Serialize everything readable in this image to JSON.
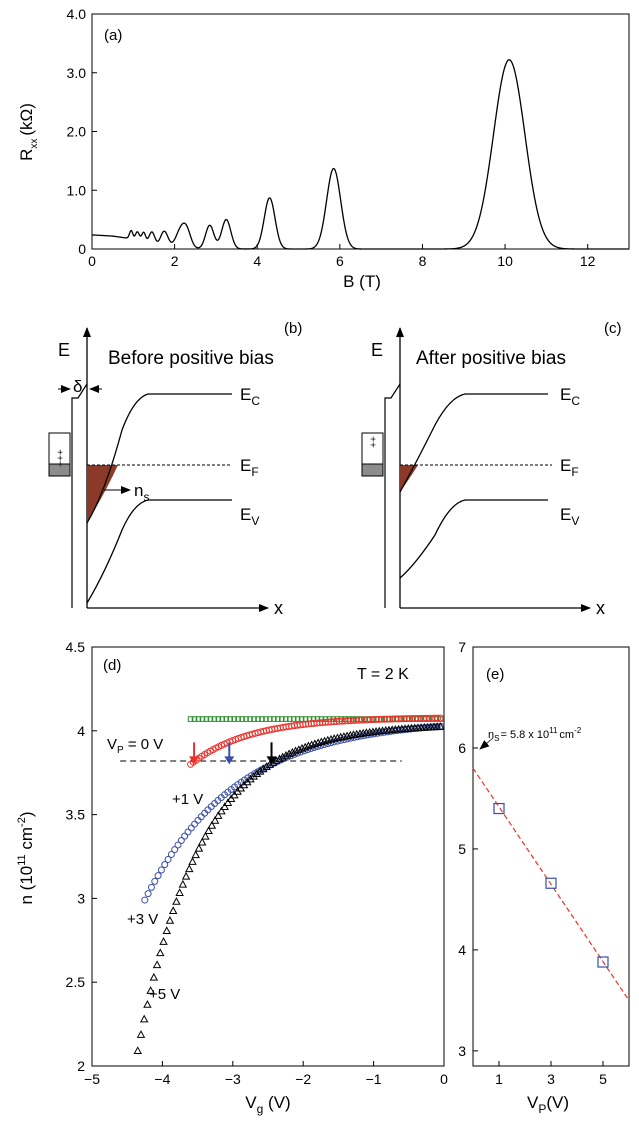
{
  "colors": {
    "black": "#000000",
    "red": "#e8332c",
    "blue": "#3b4fa8",
    "green": "#2f8f2f",
    "charge_fill": "#8b3a2a",
    "gate_gray": "#8c8c8c",
    "fit_line": "#e8332c"
  },
  "chart_data": [
    {
      "type": "line",
      "panel_label": "(a)",
      "xlabel": "B (T)",
      "ylabel_main": "R",
      "ylabel_sub": "xx",
      "ylabel_unit": "(kΩ)",
      "xlim": [
        0,
        13
      ],
      "ylim": [
        0,
        4
      ],
      "x_ticks": [
        "0",
        "2",
        "4",
        "6",
        "8",
        "10",
        "12"
      ],
      "y_ticks": [
        "0",
        "1.0",
        "2.0",
        "3.0",
        "4.0"
      ],
      "grid": false,
      "series": [
        {
          "baseline": [
            [
              0,
              0.24
            ],
            [
              0.5,
              0.22
            ],
            [
              0.9,
              0.18
            ]
          ],
          "peaks": [
            {
              "B": 0.95,
              "R": 0.15,
              "w": 0.04
            },
            {
              "B": 1.1,
              "R": 0.17,
              "w": 0.05
            },
            {
              "B": 1.25,
              "R": 0.19,
              "w": 0.05
            },
            {
              "B": 1.45,
              "R": 0.23,
              "w": 0.07
            },
            {
              "B": 1.75,
              "R": 0.27,
              "w": 0.09
            },
            {
              "B": 2.15,
              "R": 0.3,
              "w": 0.12
            },
            {
              "B": 2.3,
              "R": 0.24,
              "w": 0.1
            },
            {
              "B": 2.85,
              "R": 0.4,
              "w": 0.1
            },
            {
              "B": 3.25,
              "R": 0.5,
              "w": 0.11
            },
            {
              "B": 4.3,
              "R": 0.87,
              "w": 0.13
            },
            {
              "B": 5.85,
              "R": 1.37,
              "w": 0.17
            },
            {
              "B": 10.1,
              "R": 3.22,
              "w": 0.38
            }
          ]
        }
      ]
    },
    {
      "type": "diagram",
      "panel_label": "(b)",
      "title": "Before positive bias",
      "y_axis": "E",
      "x_axis": "x",
      "delta": "δ",
      "charges": "+++",
      "levels": {
        "ec_main": "E",
        "ec_sub": "C",
        "ef_main": "E",
        "ef_sub": "F",
        "ev_main": "E",
        "ev_sub": "V"
      },
      "ns_main": "n",
      "ns_sub": "s"
    },
    {
      "type": "diagram",
      "panel_label": "(c)",
      "title": "After positive bias",
      "y_axis": "E",
      "x_axis": "x",
      "charges": "++",
      "levels": {
        "ec_main": "E",
        "ec_sub": "C",
        "ef_main": "E",
        "ef_sub": "F",
        "ev_main": "E",
        "ev_sub": "V"
      }
    },
    {
      "type": "scatter",
      "panel_label": "(d)",
      "temperature": "T = 2 K",
      "xlabel_main": "V",
      "xlabel_sub": "g",
      "xlabel_unit": " (V)",
      "ylabel_main": "n (10",
      "ylabel_sup": "11",
      "ylabel_rest": " cm",
      "ylabel_sup2": "-2",
      "ylabel_close": ")",
      "xlim": [
        -5,
        0
      ],
      "ylim": [
        2,
        4.5
      ],
      "x_ticks": [
        "−5",
        "−4",
        "−3",
        "−2",
        "−1",
        "0"
      ],
      "y_ticks": [
        "2",
        "2.5",
        "3",
        "3.5",
        "4",
        "4.5"
      ],
      "reference_line": {
        "y": 3.82,
        "x_start": -4.6,
        "x_end": -0.6
      },
      "series": [
        {
          "label_main": "V",
          "label_sub": "P",
          "label_rest": " = 0 V",
          "marker": "square",
          "color": "green",
          "curve": {
            "x_start": -3.6,
            "x_end": -0.05,
            "n_sat": 4.07,
            "a": 0.0,
            "k": 1.0
          }
        },
        {
          "label": "+1 V",
          "marker": "circle",
          "color": "red",
          "curve": {
            "x_start": -3.6,
            "x_end": -0.05,
            "n_sat": 4.08,
            "a": 0.28,
            "k": 0.85
          }
        },
        {
          "label": "+3 V",
          "marker": "circle",
          "color": "blue",
          "curve": {
            "x_start": -4.25,
            "x_end": -0.05,
            "n_sat": 4.07,
            "a": 1.08,
            "k": 1.3
          }
        },
        {
          "label": "+5 V",
          "marker": "triangle",
          "color": "black",
          "curve": {
            "x_start": -4.35,
            "x_end": -0.05,
            "n_sat": 4.04,
            "a": 1.95,
            "k": 0.9
          }
        }
      ],
      "arrows": [
        {
          "color": "red",
          "x": -3.55,
          "y": 3.8
        },
        {
          "color": "blue",
          "x": -3.05,
          "y": 3.8
        },
        {
          "color": "black",
          "x": -2.45,
          "y": 3.8
        }
      ]
    },
    {
      "type": "scatter",
      "panel_label": "(e)",
      "xlabel_main": "V",
      "xlabel_sub": "P",
      "xlabel_unit": "(V)",
      "xlim": [
        0,
        6
      ],
      "ylim": [
        2.85,
        7
      ],
      "x_ticks": [
        "1",
        "3",
        "5"
      ],
      "x_tick_values": [
        1,
        3,
        5
      ],
      "y_ticks": [
        "3",
        "4",
        "5",
        "6",
        "7"
      ],
      "points": [
        {
          "x": 1,
          "y": 5.4
        },
        {
          "x": 3,
          "y": 4.66
        },
        {
          "x": 5,
          "y": 3.88
        }
      ],
      "fit": {
        "x": [
          0,
          6
        ],
        "y": [
          5.8,
          3.5
        ]
      },
      "annotation": {
        "main": "n",
        "sub": "S",
        "text": "= 5.8 x 10",
        "sup": "11",
        "unit": "cm",
        "sup2": "-2"
      }
    }
  ]
}
